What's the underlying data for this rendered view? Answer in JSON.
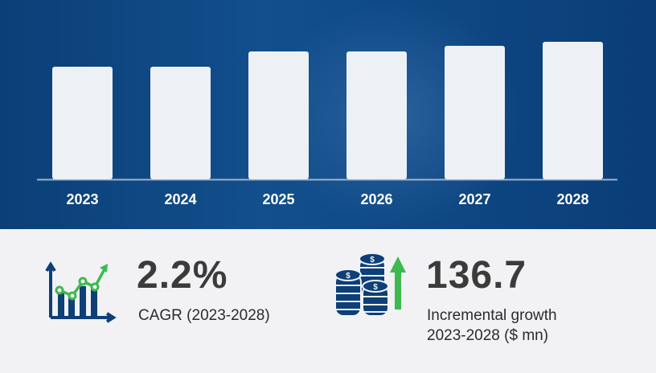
{
  "chart_data": {
    "type": "bar",
    "categories": [
      "2023",
      "2024",
      "2025",
      "2026",
      "2027",
      "2028"
    ],
    "values": [
      140,
      140,
      159,
      159,
      166,
      171
    ],
    "title": "",
    "xlabel": "",
    "ylabel": "",
    "grid": false,
    "bar_color": "#edf1f6",
    "background": "#0f4a86"
  },
  "stats": {
    "cagr": {
      "value": "2.2%",
      "label": "CAGR (2023-2028)",
      "icon": "growth-chart-icon"
    },
    "incremental": {
      "value": "136.7",
      "label_line1": "Incremental growth",
      "label_line2": "2023-2028 ($ mn)",
      "icon": "coins-up-arrow-icon"
    }
  },
  "colors": {
    "navy": "#0d3f78",
    "green": "#3dba4e",
    "text": "#3b3b3b"
  }
}
